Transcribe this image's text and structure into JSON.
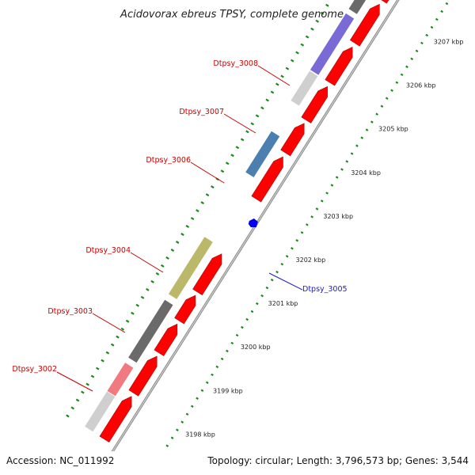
{
  "title": "Acidovorax ebreus TPSY, complete genome",
  "accession": "Accession: NC_011992",
  "topology": "Topology: circular; Length: 3,796,573 bp; Genes: 3,544",
  "colors": {
    "backbone": "#8c8c8c",
    "forward_cds": "#ff0000",
    "tick": "#1a8a1a",
    "label_red": "#cc0000",
    "label_blue": "#1a1acc",
    "gene_3002": "#f07a80",
    "gene_3003": "#6a6a6a",
    "gene_3004": "#bcb86a",
    "gene_3005": "#0000ee",
    "gene_3006": "#4a7fb0",
    "gene_3007": "#cfcfcf",
    "gene_3008": "#7a6ad6",
    "gene_dark": "#6a6a6a",
    "gene_light": "#cfcfcf"
  },
  "scale": [
    {
      "label": "3198 kbp"
    },
    {
      "label": "3199 kbp"
    },
    {
      "label": "3200 kbp"
    },
    {
      "label": "3201 kbp"
    },
    {
      "label": "3202 kbp"
    },
    {
      "label": "3203 kbp"
    },
    {
      "label": "3204 kbp"
    },
    {
      "label": "3205 kbp"
    },
    {
      "label": "3206 kbp"
    },
    {
      "label": "3207 kbp"
    }
  ],
  "genes": [
    {
      "label": "Dtpsy_3002",
      "color_key": "gene_3002"
    },
    {
      "label": "Dtpsy_3003",
      "color_key": "gene_3003"
    },
    {
      "label": "Dtpsy_3004",
      "color_key": "gene_3004"
    },
    {
      "label": "Dtpsy_3005",
      "color_key": "gene_3005"
    },
    {
      "label": "Dtpsy_3006",
      "color_key": "gene_3006"
    },
    {
      "label": "Dtpsy_3007",
      "color_key": "gene_3007"
    },
    {
      "label": "Dtpsy_3008",
      "color_key": "gene_3008"
    }
  ]
}
